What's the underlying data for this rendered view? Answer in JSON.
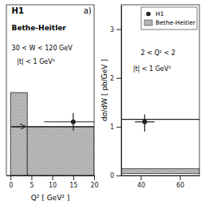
{
  "chart_data": [
    {
      "type": "histogram",
      "title": "H1",
      "subtitle": "Bethe-Heitler",
      "panel_label": "a)",
      "annotations": [
        "30 < W < 120 GeV",
        "|t| < 1 GeV²"
      ],
      "xlabel": "Q²  [ GeV² ]",
      "bins": [
        0,
        4,
        20
      ],
      "values": [
        1.7,
        1.0
      ],
      "color": "#c0c0c0",
      "hline": 1.0,
      "arrow": {
        "x_start": 0.5,
        "x_end": 3.5,
        "y": 1.0
      },
      "points": {
        "x": [
          15.0
        ],
        "y": [
          1.1
        ],
        "yerr_lo": [
          0.18
        ],
        "yerr_hi": [
          0.18
        ],
        "xerr_lo": [
          7.0
        ],
        "xerr_hi": [
          5.0
        ]
      },
      "xlim": [
        -1,
        20
      ],
      "ylim": [
        0,
        3.5
      ],
      "xticks": [
        0,
        5,
        10,
        15,
        20
      ],
      "tick_labels": "x"
    },
    {
      "type": "scatter",
      "ylabel": "dσ/dW  [ pb/GeV ]",
      "annotations": [
        "2 < Q² < 2",
        "|t| < 1 GeV²"
      ],
      "series": [
        {
          "name": "H1",
          "type": "scatter",
          "x": [
            42.0
          ],
          "values": [
            1.1
          ],
          "yerr_lo": [
            0.2
          ],
          "yerr_hi": [
            0.15
          ],
          "xerr_lo": [
            5.0
          ],
          "xerr_hi": [
            5.0
          ]
        },
        {
          "name": "Bethe-Heitler",
          "type": "band",
          "y0": 0.04,
          "height": 0.1,
          "color": "#c0c0c0"
        }
      ],
      "hline": 1.15,
      "legend": "upper right",
      "xlim": [
        30,
        70
      ],
      "ylim": [
        0,
        3.5
      ],
      "xticks": [
        40,
        60
      ],
      "yticks": [
        0,
        1,
        2,
        3
      ]
    }
  ]
}
